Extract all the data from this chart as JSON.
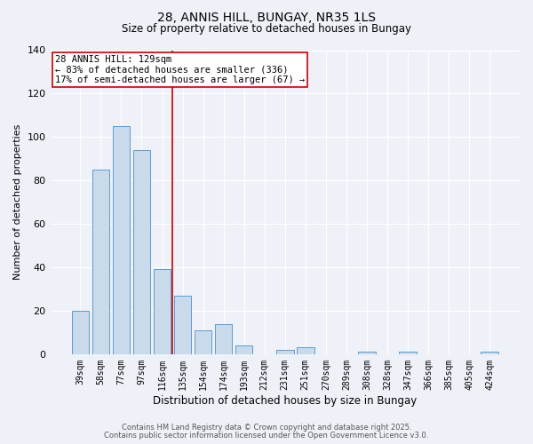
{
  "title": "28, ANNIS HILL, BUNGAY, NR35 1LS",
  "subtitle": "Size of property relative to detached houses in Bungay",
  "xlabel": "Distribution of detached houses by size in Bungay",
  "ylabel": "Number of detached properties",
  "bar_labels": [
    "39sqm",
    "58sqm",
    "77sqm",
    "97sqm",
    "116sqm",
    "135sqm",
    "154sqm",
    "174sqm",
    "193sqm",
    "212sqm",
    "231sqm",
    "251sqm",
    "270sqm",
    "289sqm",
    "308sqm",
    "328sqm",
    "347sqm",
    "366sqm",
    "385sqm",
    "405sqm",
    "424sqm"
  ],
  "bar_values": [
    20,
    85,
    105,
    94,
    39,
    27,
    11,
    14,
    4,
    0,
    2,
    3,
    0,
    0,
    1,
    0,
    1,
    0,
    0,
    0,
    1
  ],
  "bar_color": "#c9daea",
  "bar_edge_color": "#5b9bd5",
  "vline_color": "#cc0000",
  "vline_x": 4.5,
  "annotation_title": "28 ANNIS HILL: 129sqm",
  "annotation_line2": "← 83% of detached houses are smaller (336)",
  "annotation_line3": "17% of semi-detached houses are larger (67) →",
  "annotation_box_edgecolor": "#cc0000",
  "ylim": [
    0,
    140
  ],
  "yticks": [
    0,
    20,
    40,
    60,
    80,
    100,
    120,
    140
  ],
  "footer1": "Contains HM Land Registry data © Crown copyright and database right 2025.",
  "footer2": "Contains public sector information licensed under the Open Government Licence v3.0.",
  "bg_color": "#eef2f8",
  "plot_bg_color": "#eef2f8",
  "grid_color": "#ffffff",
  "title_fontsize": 10,
  "subtitle_fontsize": 8.5,
  "xlabel_fontsize": 8.5,
  "ylabel_fontsize": 8,
  "tick_fontsize": 7,
  "annot_fontsize": 7.5,
  "footer_fontsize": 6
}
